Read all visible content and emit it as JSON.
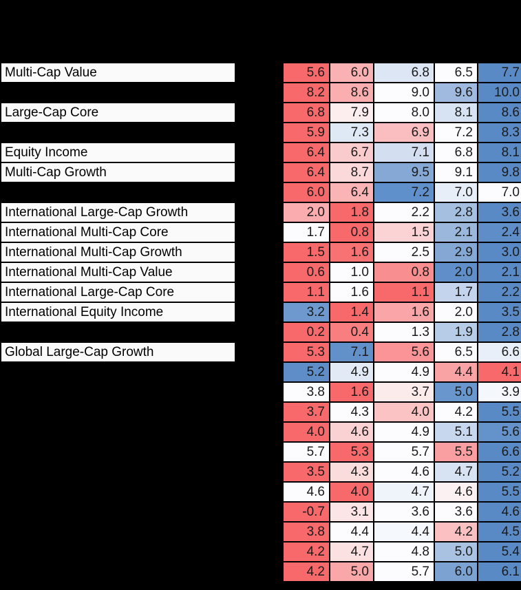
{
  "panel": {
    "background_color": "#000000",
    "label_background_color": "#FAFAFA",
    "text_color": "#1a1a1a"
  },
  "chart_data": {
    "type": "heatmap",
    "title": "",
    "num_columns": 5,
    "column_headers_visible": false,
    "legend": "none",
    "color_scale": {
      "low_color": "#F8696B",
      "mid_color": "#FCFCFF",
      "high_color": "#5A8AC6",
      "scaling": "per-row red-white-blue conditional formatting"
    },
    "groups": [
      {
        "rows": [
          {
            "label": "Multi-Cap Value",
            "values": [
              5.6,
              6.0,
              6.8,
              6.5,
              7.7
            ],
            "colors": [
              "#F8696B",
              "#FAB1B3",
              "#DCE6F4",
              "#FCFCFF",
              "#5A8AC6"
            ]
          },
          {
            "label": null,
            "values": [
              8.2,
              8.6,
              9.0,
              9.6,
              10.0
            ],
            "colors": [
              "#F8696B",
              "#FAAEB0",
              "#FCFCFF",
              "#9FBADE",
              "#5A8AC6"
            ]
          },
          {
            "label": "Large-Cap Core",
            "values": [
              6.8,
              7.9,
              8.0,
              8.1,
              8.6
            ],
            "colors": [
              "#F8696B",
              "#FCEDEE",
              "#FCFCFF",
              "#D7E2F2",
              "#5A8AC6"
            ]
          },
          {
            "label": null,
            "values": [
              5.9,
              7.3,
              6.9,
              7.2,
              8.3
            ],
            "colors": [
              "#F8696B",
              "#DFE9F5",
              "#FABEC0",
              "#FCFCFF",
              "#5A8AC6"
            ]
          },
          {
            "label": "Equity Income",
            "values": [
              6.4,
              6.7,
              7.1,
              6.8,
              8.1
            ],
            "colors": [
              "#F8696B",
              "#FACBCD",
              "#D3DFF1",
              "#FCFCFF",
              "#5A8AC6"
            ]
          },
          {
            "label": "Multi-Cap Growth",
            "values": [
              6.4,
              8.7,
              9.5,
              9.1,
              9.8
            ],
            "colors": [
              "#F8696B",
              "#FBD9DA",
              "#85A8D5",
              "#FCFCFF",
              "#5A8AC6"
            ]
          },
          {
            "label": null,
            "values": [
              6.0,
              6.4,
              7.2,
              7.0,
              7.0
            ],
            "colors": [
              "#F8696B",
              "#FAB4B6",
              "#6090CB",
              "#E8EEF8",
              "#FCFCFF"
            ]
          }
        ]
      },
      {
        "rows": [
          {
            "label": "International Large-Cap Growth",
            "values": [
              2.0,
              1.8,
              2.2,
              2.8,
              3.6
            ],
            "colors": [
              "#FAACAE",
              "#F8696B",
              "#FCFCFF",
              "#A5BFE1",
              "#5A8AC6"
            ]
          },
          {
            "label": "International Multi-Cap Core",
            "values": [
              1.7,
              0.8,
              1.5,
              2.1,
              2.4
            ],
            "colors": [
              "#FCFCFF",
              "#F8696B",
              "#FBD3D4",
              "#9BB7DC",
              "#5E8DC8"
            ]
          },
          {
            "label": "International Multi-Cap Growth",
            "values": [
              1.5,
              1.6,
              2.5,
              2.9,
              3.0
            ],
            "colors": [
              "#F8696B",
              "#F87173",
              "#FCFCFF",
              "#84A7D4",
              "#5A8AC6"
            ]
          },
          {
            "label": "International Multi-Cap Value",
            "values": [
              0.6,
              1.0,
              0.8,
              2.0,
              2.1
            ],
            "colors": [
              "#F8696B",
              "#FCFCFF",
              "#F98E90",
              "#5F8EC9",
              "#5A8AC6"
            ]
          },
          {
            "label": "International Large-Cap Core",
            "values": [
              1.1,
              1.6,
              1.1,
              1.7,
              2.2
            ],
            "colors": [
              "#F8696B",
              "#FCFCFF",
              "#F8696B",
              "#C3D4EC",
              "#5A8AC6"
            ]
          },
          {
            "label": "International Equity Income",
            "values": [
              3.2,
              1.4,
              1.6,
              2.0,
              3.5
            ],
            "colors": [
              "#6D99CE",
              "#F8696B",
              "#FAA5A7",
              "#FCFCFF",
              "#5A8AC6"
            ]
          },
          {
            "label": null,
            "values": [
              0.2,
              0.4,
              1.3,
              1.9,
              2.8
            ],
            "colors": [
              "#F8696B",
              "#F97E80",
              "#FCFCFF",
              "#B7CCE7",
              "#5A8AC6"
            ]
          }
        ]
      },
      {
        "rows": [
          {
            "label": "Global Large-Cap Growth",
            "values": [
              5.3,
              7.1,
              5.6,
              6.5,
              6.6
            ],
            "colors": [
              "#F8696B",
              "#6291CA",
              "#FA9496",
              "#FCFCFF",
              "#E9EFF8"
            ]
          },
          {
            "label": null,
            "values": [
              5.2,
              4.9,
              4.9,
              4.4,
              4.1
            ],
            "colors": [
              "#5F8DC8",
              "#E2EAF6",
              "#FCFCFF",
              "#FAA3A5",
              "#F8696B"
            ]
          },
          {
            "label": null,
            "values": [
              3.8,
              1.6,
              3.7,
              5.0,
              3.9
            ],
            "colors": [
              "#FCFCFF",
              "#F8696B",
              "#FCEBEB",
              "#6996CC",
              "#F4F7FC"
            ]
          },
          {
            "label": null,
            "values": [
              3.7,
              4.3,
              4.0,
              4.2,
              5.5
            ],
            "colors": [
              "#F8696B",
              "#FCFCFF",
              "#FBC3C4",
              "#FCFCFF",
              "#5A8AC6"
            ]
          }
        ]
      },
      {
        "rows": [
          {
            "label": null,
            "values": [
              4.0,
              4.6,
              4.9,
              5.1,
              5.6
            ],
            "colors": [
              "#F8696B",
              "#FBD2D3",
              "#FCFCFF",
              "#C7D7EE",
              "#6492CB"
            ]
          },
          {
            "label": null,
            "values": [
              5.7,
              5.3,
              5.7,
              5.5,
              6.6
            ],
            "colors": [
              "#FCFCFF",
              "#F8696B",
              "#FCFCFF",
              "#FA9FA1",
              "#5A8AC6"
            ]
          },
          {
            "label": null,
            "values": [
              3.5,
              4.3,
              4.6,
              4.7,
              5.2
            ],
            "colors": [
              "#F8696B",
              "#FBDCDD",
              "#FCFCFF",
              "#D7E2F2",
              "#5A8AC6"
            ]
          },
          {
            "label": null,
            "values": [
              4.6,
              4.0,
              4.7,
              4.6,
              5.5
            ],
            "colors": [
              "#FCFCFF",
              "#F8696B",
              "#EFF3FA",
              "#FCF1F2",
              "#5A8AC6"
            ]
          },
          {
            "label": null,
            "values": [
              -0.7,
              3.1,
              3.6,
              3.6,
              4.6
            ],
            "colors": [
              "#F8696B",
              "#FBE5E6",
              "#FCFCFF",
              "#FCFCFF",
              "#5A8AC6"
            ]
          }
        ]
      },
      {
        "rows": [
          {
            "label": null,
            "values": [
              3.8,
              4.4,
              4.4,
              4.2,
              4.5
            ],
            "colors": [
              "#F8696B",
              "#FCFCFF",
              "#F5F8FD",
              "#FAC0C2",
              "#5A8AC6"
            ]
          },
          {
            "label": null,
            "values": [
              4.2,
              4.7,
              4.8,
              5.0,
              5.4
            ],
            "colors": [
              "#F8696B",
              "#FBE1E2",
              "#FCFCFF",
              "#A9C2E2",
              "#5A8AC6"
            ]
          },
          {
            "label": null,
            "values": [
              4.2,
              5.0,
              5.7,
              6.0,
              6.1
            ],
            "colors": [
              "#F8696B",
              "#FAA7A9",
              "#FCFCFF",
              "#7CA2D2",
              "#5A8AC6"
            ]
          }
        ]
      }
    ]
  }
}
